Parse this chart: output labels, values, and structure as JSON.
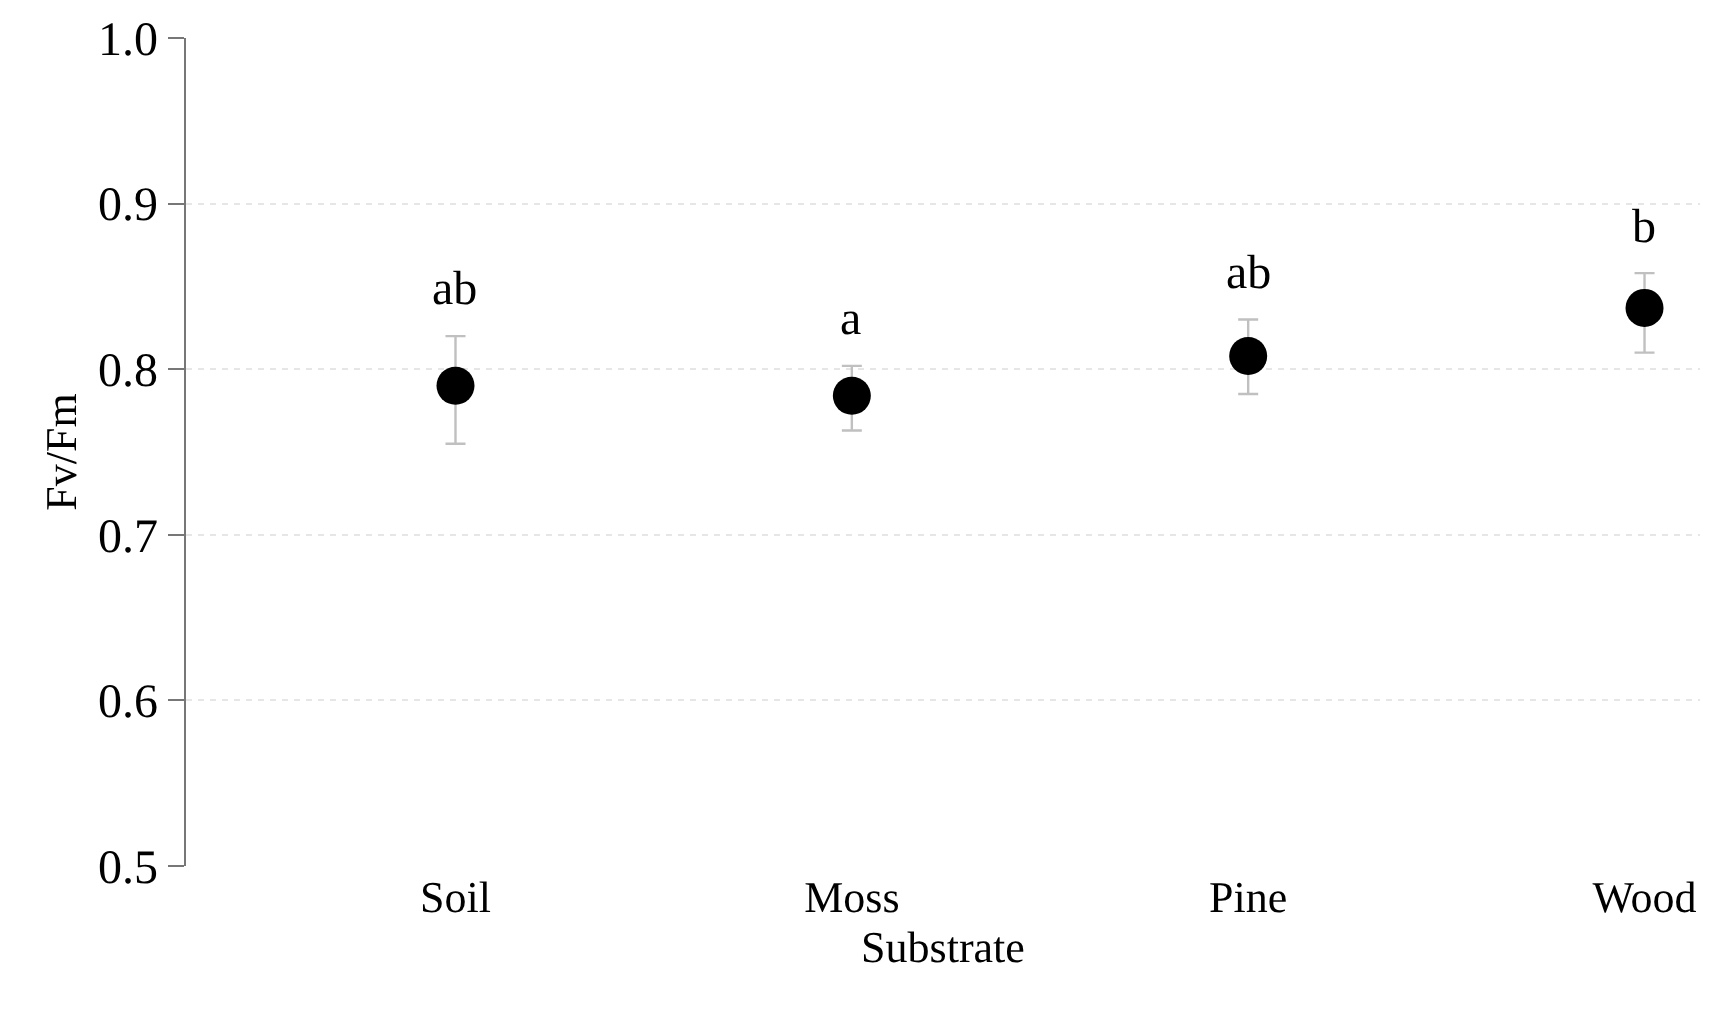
{
  "chart_data": {
    "type": "scatter",
    "xlabel": "Substrate",
    "ylabel": "Fv/Fm",
    "categories": [
      "Soil",
      "Moss",
      "Pine",
      "Wood"
    ],
    "values": [
      0.79,
      0.784,
      0.808,
      0.837
    ],
    "errors": [
      [
        0.755,
        0.82
      ],
      [
        0.763,
        0.802
      ],
      [
        0.785,
        0.83
      ],
      [
        0.81,
        0.858
      ]
    ],
    "color": "#000000",
    "marker": "circle",
    "ylim": [
      0.5,
      1.0
    ],
    "yticks": [
      {
        "value": 0.5,
        "label": "0.5"
      },
      {
        "value": 0.6,
        "label": "0.6"
      },
      {
        "value": 0.7,
        "label": "0.7"
      },
      {
        "value": 0.8,
        "label": "0.8"
      },
      {
        "value": 0.9,
        "label": "0.9"
      },
      {
        "value": 1.0,
        "label": "1.0"
      }
    ],
    "grid": "y",
    "annotations": [
      "ab",
      "a",
      "ab",
      "b"
    ]
  }
}
